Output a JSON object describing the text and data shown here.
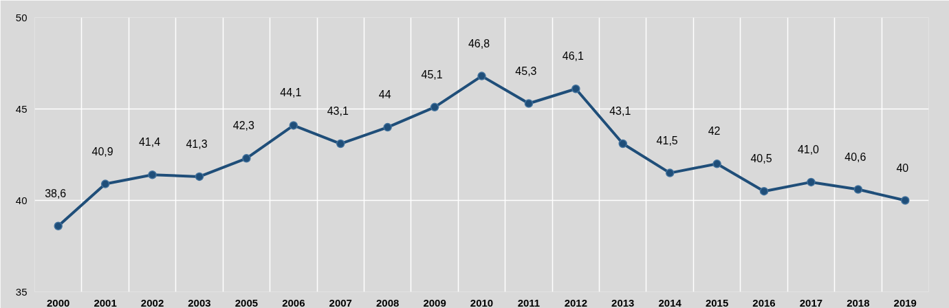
{
  "chart_data": {
    "type": "line",
    "categories": [
      "2000",
      "2001",
      "2002",
      "2003",
      "2005",
      "2006",
      "2007",
      "2008",
      "2009",
      "2010",
      "2011",
      "2012",
      "2013",
      "2014",
      "2015",
      "2016",
      "2017",
      "2018",
      "2019"
    ],
    "series": [
      {
        "color": "#1f4e79",
        "values": [
          38.6,
          40.9,
          41.4,
          41.3,
          42.3,
          44.1,
          43.1,
          44,
          45.1,
          46.8,
          45.3,
          46.1,
          43.1,
          41.5,
          42,
          40.5,
          41.0,
          40.6,
          40
        ],
        "value_labels": [
          "38,6",
          "40,9",
          "41,4",
          "41,3",
          "42,3",
          "44,1",
          "43,1",
          "44",
          "45,1",
          "46,8",
          "45,3",
          "46,1",
          "43,1",
          "41,5",
          "42",
          "40,5",
          "41,0",
          "40,6",
          "40"
        ]
      }
    ],
    "ylim": [
      35,
      50
    ],
    "yticks": [
      35,
      40,
      45,
      50
    ],
    "grid": true,
    "marker": "circle",
    "line_style": "solid"
  }
}
